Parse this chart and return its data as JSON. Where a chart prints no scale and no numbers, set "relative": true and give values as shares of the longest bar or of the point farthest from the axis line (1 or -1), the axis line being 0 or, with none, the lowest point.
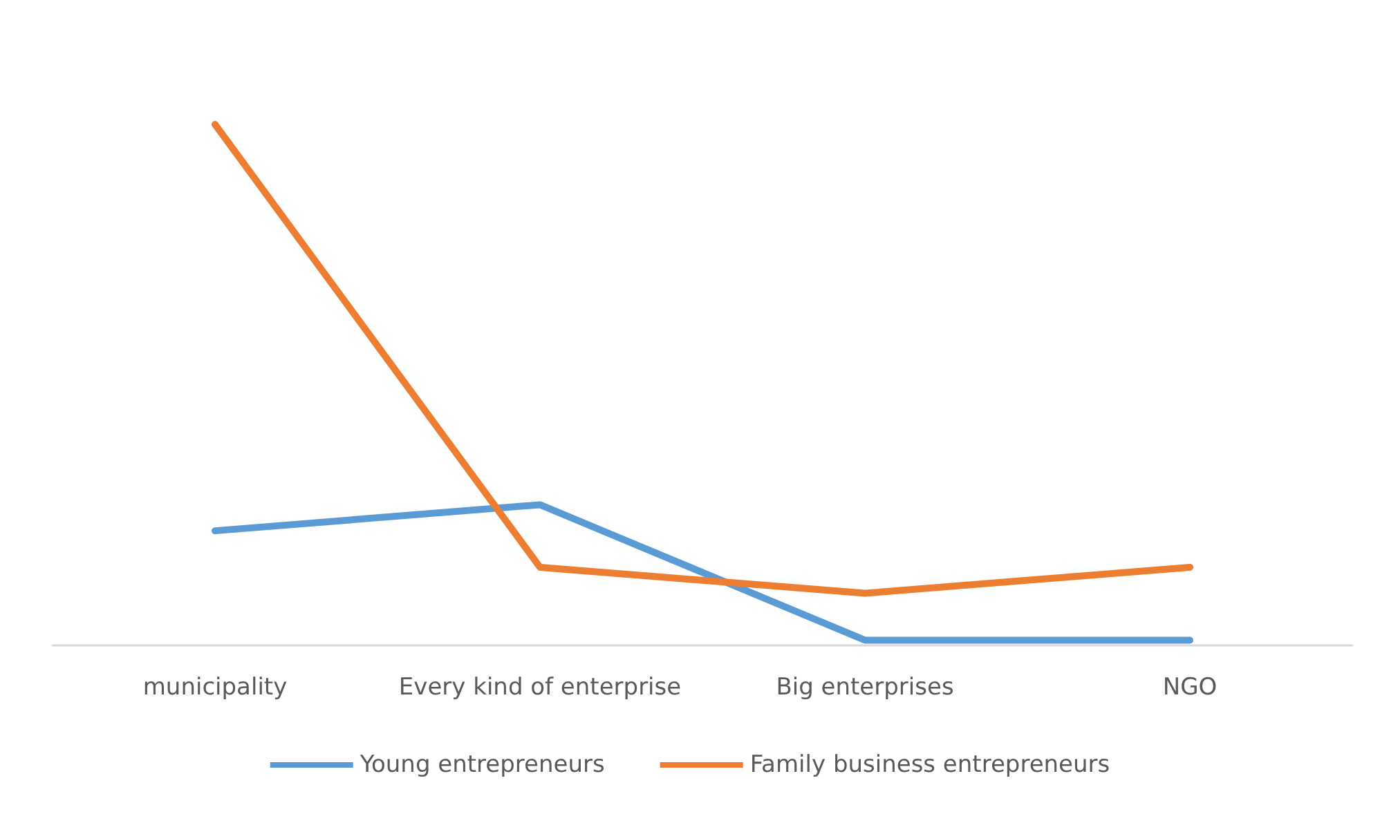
{
  "chart_data": {
    "type": "line",
    "relative": true,
    "categories": [
      "municipality",
      "Every kind of enterprise",
      "Big enterprises",
      "NGO"
    ],
    "series": [
      {
        "name": "Young entrepreneurs",
        "color": "#5b9bd5",
        "values": [
          0.22,
          0.27,
          0.01,
          0.01
        ]
      },
      {
        "name": "Family business entrepreneurs",
        "color": "#ed7d31",
        "values": [
          1,
          0.15,
          0.1,
          0.15
        ]
      }
    ],
    "legend": "bottom",
    "grid": false,
    "marker": "none"
  }
}
